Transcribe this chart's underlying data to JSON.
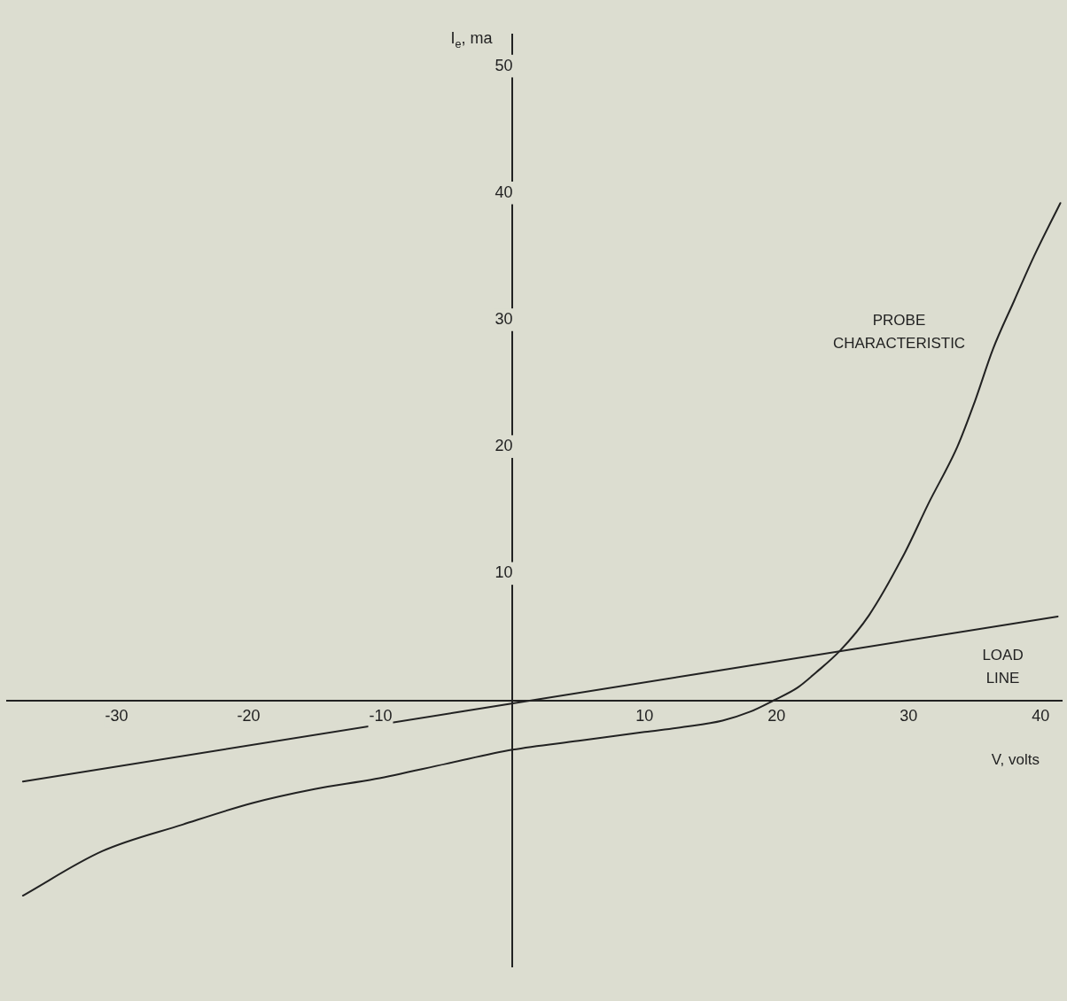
{
  "chart_data": {
    "type": "line",
    "xlabel": "V, volts",
    "ylabel": "I$_{e}$, ma",
    "xlim": [
      -38.3,
      41.6
    ],
    "ylim": [
      -21,
      52.5
    ],
    "xticks": [
      -30,
      -20,
      -10,
      10,
      20,
      30,
      40
    ],
    "yticks": [
      10,
      20,
      30,
      40,
      50
    ],
    "grid": false,
    "legend": false,
    "marker": "none",
    "line_style": "solid",
    "series": [
      {
        "name": "PROBE CHARACTERISTIC",
        "color": "#222222",
        "x": [
          -37.1,
          -31.1,
          -25,
          -19.7,
          -15,
          -10.4,
          -5,
          0,
          5,
          10,
          13,
          15.9,
          18,
          19.8,
          21.6,
          23,
          24.8,
          27,
          29.7,
          31.5,
          33.7,
          35,
          36.4,
          38,
          39.5,
          41.5
        ],
        "values": [
          -15.4,
          -11.9,
          -9.8,
          -8.1,
          -7.0,
          -6.2,
          -5.0,
          -3.9,
          -3.2,
          -2.5,
          -2.1,
          -1.6,
          -0.9,
          0,
          1.0,
          2.2,
          3.9,
          6.7,
          11.6,
          15.5,
          20,
          23.5,
          27.7,
          31.5,
          35,
          39.2
        ]
      },
      {
        "name": "LOAD LINE",
        "color": "#222222",
        "x": [
          -37.1,
          41.3
        ],
        "values": [
          -6.4,
          6.6
        ]
      }
    ]
  }
}
